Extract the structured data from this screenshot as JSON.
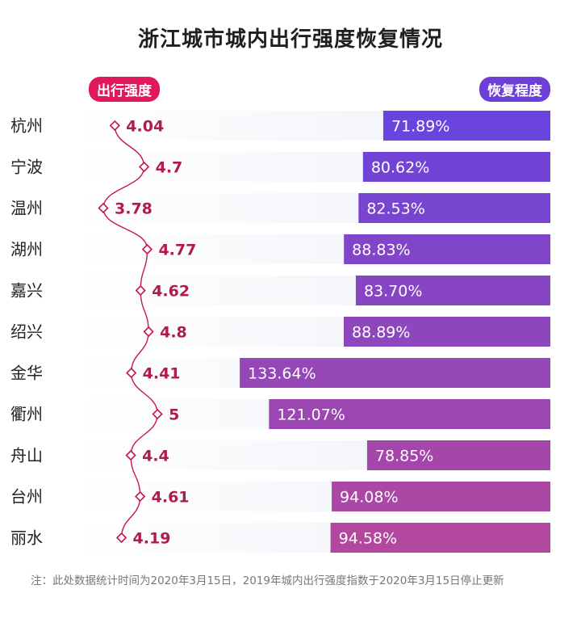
{
  "title": "浙江城市城内出行强度恢复情况",
  "legend": {
    "intensity_label": "出行强度",
    "recovery_label": "恢复程度"
  },
  "colors": {
    "intensity": "#c8154f",
    "recovery_start": "#6a44dc",
    "recovery_end": "#b2479e",
    "row_bg": "#eef0f8"
  },
  "chart_data": {
    "type": "bar",
    "categories": [
      "杭州",
      "宁波",
      "温州",
      "湖州",
      "嘉兴",
      "绍兴",
      "金华",
      "衢州",
      "舟山",
      "台州",
      "丽水"
    ],
    "series": [
      {
        "name": "出行强度",
        "type": "line",
        "values": [
          4.04,
          4.7,
          3.78,
          4.77,
          4.62,
          4.8,
          4.41,
          5,
          4.4,
          4.61,
          4.19
        ],
        "labels": [
          "4.04",
          "4.7",
          "3.78",
          "4.77",
          "4.62",
          "4.8",
          "4.41",
          "5",
          "4.4",
          "4.61",
          "4.19"
        ]
      },
      {
        "name": "恢复程度",
        "type": "bar",
        "values": [
          71.89,
          80.62,
          82.53,
          88.83,
          83.7,
          88.89,
          133.64,
          121.07,
          78.85,
          94.08,
          94.58
        ],
        "labels": [
          "71.89%",
          "80.62%",
          "82.53%",
          "88.83%",
          "83.70%",
          "88.89%",
          "133.64%",
          "121.07%",
          "78.85%",
          "94.08%",
          "94.58%"
        ]
      }
    ],
    "bar_orientation": "horizontal",
    "bar_anchor": "right"
  },
  "footnote": "注：此处数据统计时间为2020年3月15日，2019年城内出行强度指数于2020年3月15日停止更新"
}
